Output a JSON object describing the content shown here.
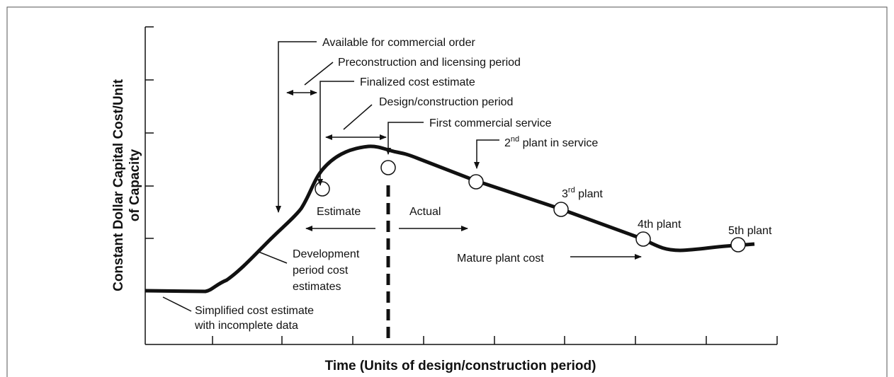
{
  "axes": {
    "y_label_lines": [
      "Constant Dollar Capital Cost/Unit",
      "of Capacity"
    ],
    "x_label": "Time (Units of design/construction period)"
  },
  "annotations": {
    "available": "Available for commercial order",
    "preconstruction": "Preconstruction and licensing period",
    "finalized": "Finalized cost estimate",
    "design": "Design/construction period",
    "first_service": "First commercial service",
    "second_plant": {
      "number": "2",
      "suffix": "nd",
      "text": " plant in service"
    },
    "estimate": "Estimate",
    "actual": "Actual",
    "development": [
      "Development",
      "period cost",
      "estimates"
    ],
    "mature": "Mature plant cost",
    "simplified": [
      "Simplified cost estimate",
      "with incomplete data"
    ]
  },
  "plants": [
    {
      "number": "3",
      "suffix": "rd",
      "text": " plant"
    },
    {
      "label": "4th plant"
    },
    {
      "label": "5th plant"
    }
  ]
}
